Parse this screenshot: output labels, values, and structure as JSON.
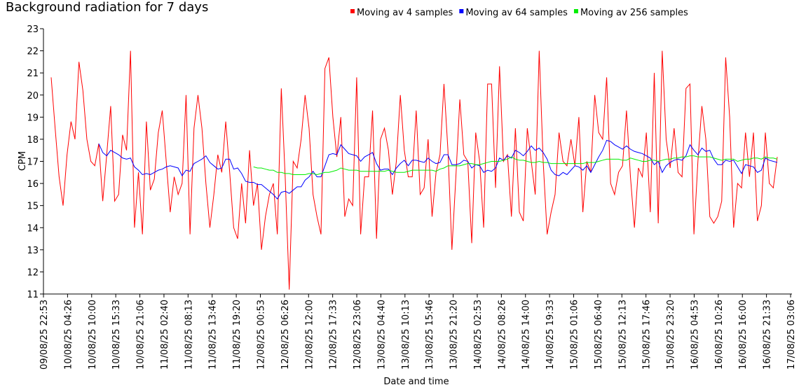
{
  "chart_data": {
    "type": "line",
    "title": "Background radiation for 7 days",
    "xlabel": "Date and time",
    "ylabel": "CPM",
    "xticks": [
      "09/08/25 22:53",
      "10/08/25 04:26",
      "10/08/25 10:00",
      "10/08/25 15:33",
      "10/08/25 21:06",
      "11/08/25 02:40",
      "11/08/25 08:13",
      "11/08/25 13:46",
      "11/08/25 19:20",
      "12/08/25 00:53",
      "12/08/25 06:26",
      "12/08/25 12:00",
      "12/08/25 17:33",
      "12/08/25 23:06",
      "13/08/25 04:40",
      "13/08/25 10:13",
      "13/08/25 15:46",
      "13/08/25 21:20",
      "14/08/25 02:53",
      "14/08/25 08:26",
      "14/08/25 14:00",
      "14/08/25 19:33",
      "15/08/25 01:06",
      "15/08/25 06:40",
      "15/08/25 12:13",
      "15/08/25 17:46",
      "15/08/25 23:20",
      "16/08/25 04:53",
      "16/08/25 10:26",
      "16/08/25 16:00",
      "16/08/25 21:33",
      "17/08/25 03:06"
    ],
    "ylim": [
      11,
      23
    ],
    "yticks": [
      11,
      12,
      13,
      14,
      15,
      16,
      17,
      18,
      19,
      20,
      21,
      22,
      23
    ],
    "series": [
      {
        "name": "Moving av 4 samples",
        "color": "#ff0000",
        "values": [
          20.8,
          18.5,
          16.3,
          15,
          17.3,
          18.8,
          18,
          21.5,
          20.2,
          18,
          17,
          16.8,
          17.8,
          15.2,
          17.3,
          19.5,
          15.2,
          15.5,
          18.2,
          17.5,
          22,
          14,
          16.5,
          13.7,
          18.8,
          15.7,
          16.2,
          18.3,
          19.3,
          17,
          14.7,
          16.3,
          15.5,
          16,
          20,
          13.7,
          18.5,
          20,
          18.5,
          16,
          14,
          15.5,
          17.3,
          16.5,
          18.8,
          16.5,
          14,
          13.5,
          16,
          14.2,
          17.5,
          15,
          16,
          13,
          14.5,
          15.5,
          16,
          13.7,
          20.3,
          16.2,
          11.2,
          17,
          16.7,
          18,
          20,
          18.5,
          15.5,
          14.5,
          13.7,
          21.2,
          21.7,
          19,
          17.2,
          19,
          14.5,
          15.3,
          15,
          20.8,
          13.7,
          16.3,
          16.3,
          19.3,
          13.5,
          18,
          18.5,
          17.5,
          15.5,
          17,
          20,
          17.5,
          16.3,
          16.3,
          19.3,
          15.5,
          15.8,
          18,
          14.5,
          16.5,
          17.3,
          20.5,
          17.5,
          13,
          16.3,
          19.8,
          17.3,
          17,
          13.3,
          18.3,
          17,
          14,
          20.5,
          20.5,
          15.8,
          21.3,
          17,
          17.3,
          14.5,
          18.5,
          14.7,
          14.3,
          18.5,
          17,
          15.5,
          22,
          17,
          13.7,
          14.7,
          15.5,
          18.3,
          17,
          16.8,
          18,
          16.8,
          19,
          14.7,
          17,
          16.5,
          20,
          18.3,
          18,
          20.8,
          16,
          15.5,
          16.5,
          16.8,
          19.3,
          16.3,
          14,
          16.7,
          16.3,
          18.3,
          14.7,
          21,
          14.2,
          22,
          18,
          16.7,
          18.5,
          16.5,
          16.3,
          20.3,
          20.5,
          13.7,
          17,
          19.5,
          18,
          14.5,
          14.2,
          14.5,
          15.2,
          21.7,
          19,
          14,
          16,
          15.8,
          18.3,
          16.3,
          18.3,
          14.3,
          15,
          18.3,
          16,
          15.8,
          17.2
        ]
      },
      {
        "name": "Moving av 64 samples",
        "color": "#0000ff",
        "values": [
          null,
          null,
          null,
          null,
          null,
          null,
          null,
          null,
          null,
          null,
          null,
          null,
          17.8,
          17.4,
          17.25,
          17.5,
          17.4,
          17.3,
          17.15,
          17.1,
          17.15,
          16.75,
          16.6,
          16.4,
          16.45,
          16.4,
          16.5,
          16.6,
          16.65,
          16.75,
          16.8,
          16.75,
          16.7,
          16.35,
          16.6,
          16.55,
          16.9,
          17,
          17.1,
          17.25,
          16.95,
          16.8,
          16.65,
          16.7,
          17.1,
          17.1,
          16.65,
          16.7,
          16.45,
          16.1,
          16.05,
          16.05,
          15.95,
          15.95,
          15.8,
          15.65,
          15.5,
          15.3,
          15.6,
          15.65,
          15.55,
          15.7,
          15.85,
          15.85,
          16.15,
          16.3,
          16.55,
          16.3,
          16.3,
          16.8,
          17.3,
          17.35,
          17.3,
          17.75,
          17.55,
          17.35,
          17.3,
          17.25,
          17,
          17.2,
          17.3,
          17.4,
          16.9,
          16.6,
          16.65,
          16.65,
          16.4,
          16.7,
          16.9,
          17.05,
          16.8,
          17.05,
          17.05,
          17,
          16.95,
          17.15,
          17,
          16.9,
          16.95,
          17.3,
          17.3,
          16.85,
          16.85,
          16.9,
          17.05,
          17,
          16.7,
          16.85,
          16.8,
          16.5,
          16.6,
          16.55,
          16.7,
          17.15,
          17.05,
          17.25,
          17.15,
          17.5,
          17.4,
          17.25,
          17.45,
          17.7,
          17.5,
          17.6,
          17.4,
          17.1,
          16.6,
          16.4,
          16.35,
          16.5,
          16.4,
          16.6,
          16.8,
          16.75,
          16.6,
          16.8,
          16.5,
          16.85,
          17.2,
          17.5,
          17.95,
          17.9,
          17.75,
          17.65,
          17.55,
          17.7,
          17.55,
          17.45,
          17.4,
          17.35,
          17.25,
          17.15,
          16.85,
          17,
          16.5,
          16.8,
          16.95,
          17.05,
          17.1,
          17.05,
          17.25,
          17.75,
          17.5,
          17.3,
          17.6,
          17.45,
          17.5,
          17.1,
          16.85,
          16.85,
          17.05,
          17,
          17.05,
          16.75,
          16.45,
          16.85,
          16.8,
          16.75,
          16.5,
          16.6,
          17.15,
          17.05,
          17.0,
          16.95
        ]
      },
      {
        "name": "Moving av 256 samples",
        "color": "#00ee00",
        "values": [
          null,
          null,
          null,
          null,
          null,
          null,
          null,
          null,
          null,
          null,
          null,
          null,
          null,
          null,
          null,
          null,
          null,
          null,
          null,
          null,
          null,
          null,
          null,
          null,
          null,
          null,
          null,
          null,
          null,
          null,
          null,
          null,
          null,
          null,
          null,
          null,
          null,
          null,
          null,
          null,
          null,
          null,
          null,
          null,
          null,
          null,
          null,
          null,
          null,
          null,
          null,
          16.75,
          16.7,
          16.7,
          16.65,
          16.6,
          16.6,
          16.5,
          16.5,
          16.45,
          16.45,
          16.4,
          16.4,
          16.4,
          16.4,
          16.45,
          16.45,
          16.4,
          16.45,
          16.5,
          16.5,
          16.55,
          16.6,
          16.7,
          16.65,
          16.6,
          16.6,
          16.6,
          16.55,
          16.55,
          16.55,
          16.55,
          16.55,
          16.55,
          16.55,
          16.6,
          16.55,
          16.5,
          16.5,
          16.5,
          16.55,
          16.6,
          16.6,
          16.6,
          16.6,
          16.6,
          16.6,
          16.55,
          16.65,
          16.7,
          16.8,
          16.8,
          16.8,
          16.8,
          16.85,
          16.9,
          16.9,
          16.85,
          16.85,
          16.9,
          16.95,
          17.0,
          17.0,
          17.0,
          17.05,
          17.1,
          17.2,
          17.1,
          17.05,
          17.05,
          17.0,
          16.95,
          16.95,
          17.0,
          16.95,
          16.95,
          16.9,
          16.9,
          16.9,
          16.9,
          16.9,
          16.9,
          16.9,
          16.9,
          16.9,
          16.95,
          16.95,
          16.95,
          17.0,
          17.05,
          17.1,
          17.1,
          17.1,
          17.1,
          17.05,
          17.05,
          17.15,
          17.1,
          17.05,
          17.0,
          17.0,
          17.05,
          17.05,
          17.0,
          17.05,
          17.1,
          17.1,
          17.15,
          17.15,
          17.2,
          17.2,
          17.25,
          17.25,
          17.2,
          17.2,
          17.2,
          17.2,
          17.15,
          17.1,
          17.05,
          17.1,
          17.1,
          17.1,
          17.0,
          17.05,
          17.1,
          17.1,
          17.15,
          17.15,
          17.1,
          17.2,
          17.15,
          17.15,
          17.1
        ]
      }
    ]
  }
}
